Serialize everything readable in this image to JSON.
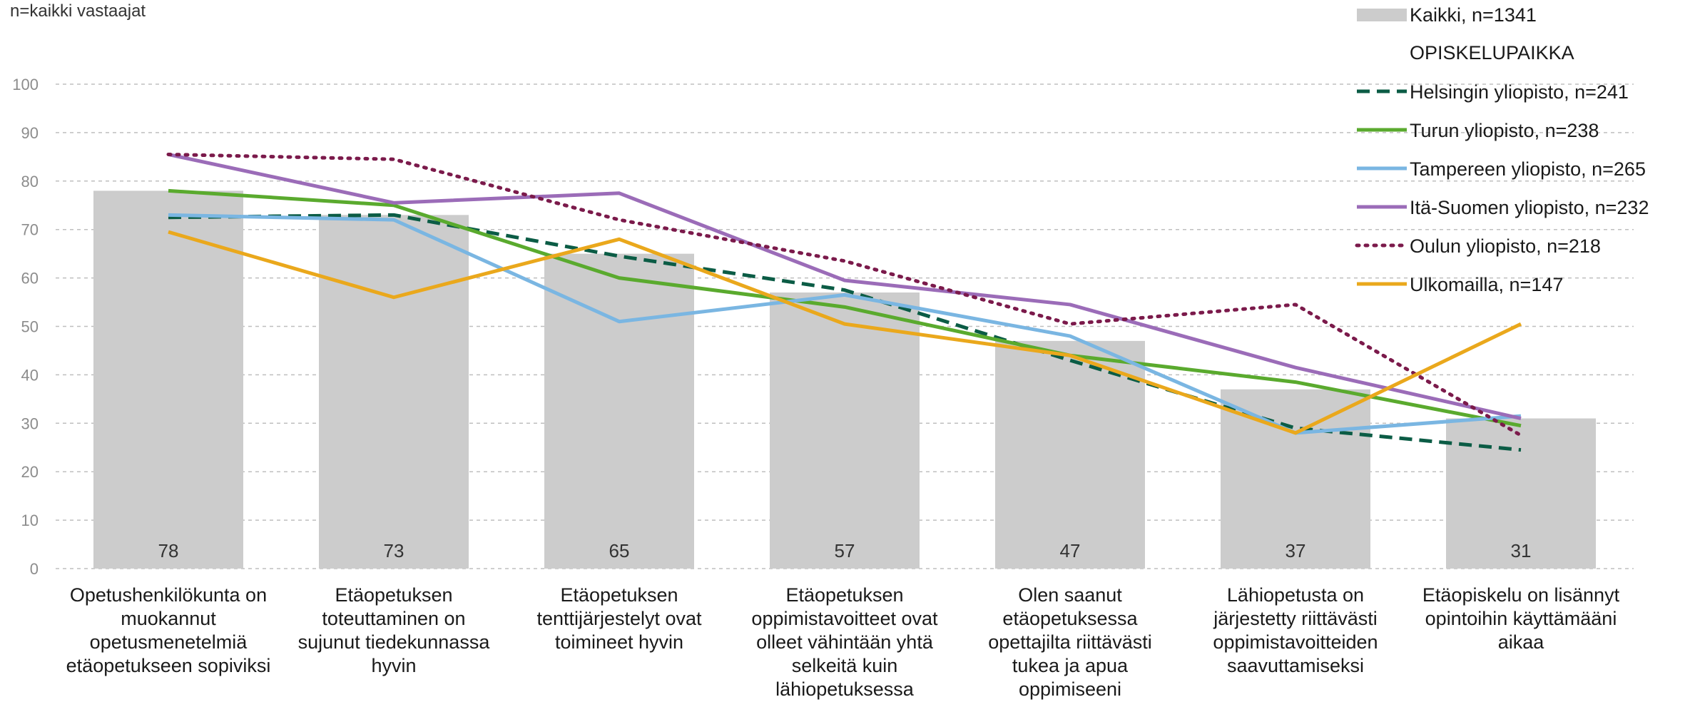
{
  "subtitle": "n=kaikki vastaajat",
  "chart_data": {
    "type": "bar",
    "ylim": [
      0,
      100
    ],
    "yticks": [
      0,
      10,
      20,
      30,
      40,
      50,
      60,
      70,
      80,
      90,
      100
    ],
    "grid": true,
    "legend_position": "top-right",
    "legend_group_header": "OPISKELUPAIKKA",
    "categories": [
      [
        "Opetushenkilökunta on",
        "muokannut",
        "opetusmenetelmiä",
        "etäopetukseen sopiviksi"
      ],
      [
        "Etäopetuksen",
        "toteuttaminen on",
        "sujunut tiedekunnassa",
        "hyvin"
      ],
      [
        "Etäopetuksen",
        "tenttijärjestelyt ovat",
        "toimineet hyvin"
      ],
      [
        "Etäopetuksen",
        "oppimistavoitteet ovat",
        "olleet vähintään yhtä",
        "selkeitä kuin",
        "lähiopetuksessa"
      ],
      [
        "Olen saanut",
        "etäopetuksessa",
        "opettajilta riittävästi",
        "tukea ja apua",
        "oppimiseeni"
      ],
      [
        "Lähiopetusta on",
        "järjestetty riittävästi",
        "oppimistavoitteiden",
        "saavuttamiseksi"
      ],
      [
        "Etäopiskelu on lisännyt",
        "opintoihin käyttämääni",
        "aikaa"
      ]
    ],
    "bars": {
      "name": "Kaikki, n=1341",
      "color": "#cccccc",
      "values": [
        78,
        73,
        65,
        57,
        47,
        37,
        31
      ],
      "labels": [
        "78",
        "73",
        "65",
        "57",
        "47",
        "37",
        "31"
      ]
    },
    "series": [
      {
        "name": "Helsingin yliopisto, n=241",
        "color": "#0b5c45",
        "style": "dashed",
        "values": [
          72.5,
          73,
          64.5,
          57.5,
          43,
          29,
          24.5
        ]
      },
      {
        "name": "Turun yliopisto, n=238",
        "color": "#5aaa2e",
        "style": "solid",
        "values": [
          78,
          75,
          60,
          54,
          44,
          38.5,
          29.5
        ]
      },
      {
        "name": "Tampereen yliopisto, n=265",
        "color": "#7ab6e2",
        "style": "solid",
        "values": [
          73,
          72,
          51,
          56.5,
          48,
          28,
          31.5
        ]
      },
      {
        "name": "Itä-Suomen yliopisto, n=232",
        "color": "#9b6cb8",
        "style": "solid",
        "values": [
          85.5,
          75.5,
          77.5,
          59.5,
          54.5,
          41.5,
          31
        ]
      },
      {
        "name": "Oulun yliopisto, n=218",
        "color": "#7b1a4b",
        "style": "dotted",
        "values": [
          85.5,
          84.5,
          72,
          63.5,
          50.5,
          54.5,
          27.5
        ]
      },
      {
        "name": "Ulkomailla, n=147",
        "color": "#eaa81c",
        "style": "solid",
        "values": [
          69.5,
          56,
          68,
          50.5,
          44,
          28,
          50.5
        ]
      }
    ]
  }
}
